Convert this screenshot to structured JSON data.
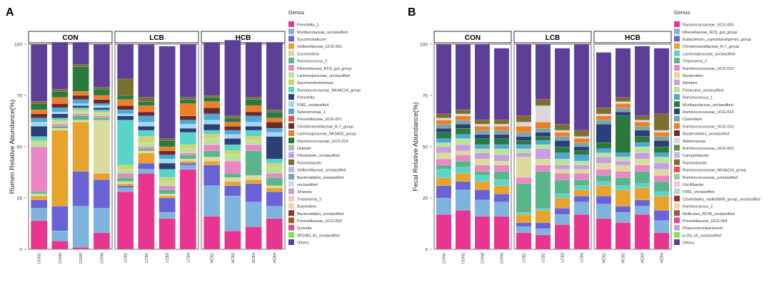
{
  "chart_data": [
    {
      "type": "bar",
      "panel_letter": "A",
      "ylabel": "Rumen Relative Abundance(%)",
      "ylim": [
        0,
        100
      ],
      "yticks": [
        "0",
        "25",
        "50",
        "75",
        "100"
      ],
      "legend_title": "Genus",
      "groups": [
        {
          "name": "CON",
          "samples": [
            "CON1",
            "CON2",
            "CON3",
            "CON4"
          ]
        },
        {
          "name": "LCB",
          "samples": [
            "LCB1",
            "LCB2",
            "LCB3",
            "LCB4"
          ]
        },
        {
          "name": "HCB",
          "samples": [
            "HCB1",
            "HCB2",
            "HCB3",
            "HCB4"
          ]
        }
      ],
      "series": [
        {
          "name": "Prevotella_1",
          "color": "#e8358f",
          "values": [
            14,
            4,
            1,
            8,
            28,
            37,
            15,
            39,
            16,
            9,
            11,
            15
          ]
        },
        {
          "name": "Muribaculaceae_unclassified",
          "color": "#7eb3de",
          "values": [
            6,
            5,
            20,
            12,
            2,
            2,
            3,
            2,
            15,
            17,
            12,
            6
          ]
        },
        {
          "name": "Succiniclasticum",
          "color": "#6a63d6",
          "values": [
            4,
            12,
            17,
            14,
            1,
            3,
            7,
            1,
            10,
            5,
            9,
            7
          ]
        },
        {
          "name": "Veillonellaceae_UCG-001",
          "color": "#e8a32e",
          "values": [
            2,
            37,
            24,
            3,
            1,
            5,
            1,
            1,
            2,
            2,
            2,
            2
          ]
        },
        {
          "name": "Succinivibrio",
          "color": "#dadb9c",
          "values": [
            1,
            1,
            1,
            26,
            1,
            1,
            1,
            1,
            2,
            2,
            2,
            1
          ]
        },
        {
          "name": "Ruminococcus_2",
          "color": "#5bb58a",
          "values": [
            1,
            1,
            2,
            1,
            2,
            1,
            2,
            2,
            3,
            2,
            12,
            4
          ]
        },
        {
          "name": "Rikenellaceae_RC9_gut_group",
          "color": "#ea86c4",
          "values": [
            22,
            1,
            1,
            1,
            2,
            1,
            2,
            1,
            3,
            6,
            3,
            2
          ]
        },
        {
          "name": "Lachnospiraceae_unclassified",
          "color": "#b9e29a",
          "values": [
            2,
            1,
            1,
            1,
            2,
            2,
            2,
            2,
            3,
            3,
            2,
            3
          ]
        },
        {
          "name": "Saccharofermentans",
          "color": "#cdd66a",
          "values": [
            1,
            1,
            1,
            1,
            2,
            3,
            2,
            2,
            2,
            2,
            2,
            2
          ]
        },
        {
          "name": "Ruminococcaceae_NK4A214_group",
          "color": "#5ad3c8",
          "values": [
            2,
            1,
            1,
            1,
            22,
            3,
            4,
            6,
            2,
            3,
            3,
            2
          ]
        },
        {
          "name": "Prevotella",
          "color": "#2b3f78",
          "values": [
            5,
            2,
            1,
            1,
            2,
            2,
            3,
            2,
            3,
            3,
            2,
            11
          ]
        },
        {
          "name": "F082_unclassified",
          "color": "#a3d8ef",
          "values": [
            2,
            1,
            1,
            1,
            1,
            2,
            2,
            2,
            2,
            2,
            2,
            2
          ]
        },
        {
          "name": "Selenomonas_1",
          "color": "#4aa9d9",
          "values": [
            2,
            2,
            2,
            1,
            2,
            3,
            2,
            2,
            3,
            2,
            3,
            2
          ]
        },
        {
          "name": "Christensenellaceae_R-7_group",
          "color": "#6b2b2b",
          "values": [
            2,
            2,
            2,
            2,
            2,
            2,
            2,
            2,
            3,
            2,
            2,
            3
          ]
        },
        {
          "name": "Lachnospiraceae_NK3A20_group",
          "color": "#ee7e28",
          "values": [
            2,
            3,
            2,
            2,
            3,
            3,
            2,
            6,
            3,
            2,
            3,
            2
          ]
        },
        {
          "name": "Ruminococcaceae_UCG-014",
          "color": "#2a7a3f",
          "values": [
            3,
            3,
            12,
            3,
            2,
            2,
            3,
            2,
            2,
            2,
            3,
            3
          ]
        },
        {
          "name": "Ruminobacter",
          "color": "#7a6f2f",
          "values": [
            1,
            1,
            1,
            1,
            8,
            2,
            1,
            1,
            1,
            1,
            1,
            1
          ]
        },
        {
          "name": "Others",
          "color": "#5e3f98",
          "values": [
            28,
            23,
            11,
            21,
            17,
            26,
            45,
            26,
            26,
            37,
            27,
            33
          ]
        }
      ],
      "legend_entries": [
        "Prevotella_1",
        "Muribaculaceae_unclassified",
        "Succiniclasticum",
        "Veillonellaceae_UCG-001",
        "Succinivibrio",
        "Ruminococcus_2",
        "Rikenellaceae_RC9_gut_group",
        "Lachnospiraceae_unclassified",
        "Saccharofermentans",
        "Ruminococcaceae_NK4A214_group",
        "Prevotella",
        "F082_unclassified",
        "Selenomonas_1",
        "Prevotellaceae_UCG-001",
        "Christensenellaceae_R-7_group",
        "Lachnospiraceae_NK3A20_group",
        "Ruminococcaceae_UCG-014",
        "Dialister",
        "Fibrobacter_unclassified",
        "Ruminobacter",
        "Veillonellaceae_unclassified",
        "Bacteroidales_unclassified",
        "unclassified",
        "Sharpea",
        "Treponema_2",
        "Butyrivibrio",
        "Bacteroidales_unclassified",
        "Prevotellaceae_UCG-003",
        "Quinella",
        "WCHB1-41_unclassified",
        "Others"
      ],
      "legend_colors": [
        "#e8358f",
        "#7eb3de",
        "#6a63d6",
        "#e8a32e",
        "#dadb9c",
        "#5bb58a",
        "#ea86c4",
        "#b9e29a",
        "#cdd66a",
        "#5ad3c8",
        "#2b3f78",
        "#a3d8ef",
        "#4aa9d9",
        "#e84a4a",
        "#6b2b2b",
        "#ee7e28",
        "#2a7a3f",
        "#9fc7a5",
        "#c79ee0",
        "#7a6f2f",
        "#c4b4e8",
        "#7aa6a8",
        "#d8d8d8",
        "#b8a7cf",
        "#f3c4d2",
        "#f1d4a8",
        "#993030",
        "#9a5a2a",
        "#e04a90",
        "#7ee34a",
        "#5e3f98"
      ]
    },
    {
      "type": "bar",
      "panel_letter": "B",
      "ylabel": "Fecal Relative Abundance(%)",
      "ylim": [
        0,
        100
      ],
      "yticks": [
        "0",
        "25",
        "50",
        "75",
        "100"
      ],
      "legend_title": "Genus",
      "groups": [
        {
          "name": "CON",
          "samples": [
            "CON1",
            "CON2",
            "CON3",
            "CON4"
          ]
        },
        {
          "name": "LCB",
          "samples": [
            "LCB1",
            "LCB2",
            "LCB3",
            "LCB4"
          ]
        },
        {
          "name": "HCB",
          "samples": [
            "HCB1",
            "HCB2",
            "HCB3",
            "HCB4"
          ]
        }
      ],
      "series": [
        {
          "name": "Ruminococcaceae_UCG-005",
          "color": "#e8358f",
          "values": [
            17,
            19,
            16,
            16,
            8,
            7,
            12,
            17,
            15,
            13,
            17,
            8
          ]
        },
        {
          "name": "Rikenellaceae_RC9_gut_group",
          "color": "#7eb3de",
          "values": [
            8,
            10,
            8,
            7,
            3,
            3,
            5,
            6,
            7,
            5,
            4,
            6
          ]
        },
        {
          "name": "Eubacterium_coprostanoligenes_group",
          "color": "#6a63d6",
          "values": [
            6,
            4,
            5,
            4,
            2,
            3,
            3,
            3,
            4,
            3,
            3,
            5
          ]
        },
        {
          "name": "Christensenellaceae_R-7_group",
          "color": "#e8a32e",
          "values": [
            4,
            4,
            4,
            4,
            4,
            6,
            5,
            3,
            5,
            8,
            6,
            7
          ]
        },
        {
          "name": "Lachnospiraceae_unclassified",
          "color": "#5ad3c8",
          "values": [
            4,
            3,
            3,
            3,
            1,
            1,
            2,
            2,
            2,
            2,
            2,
            2
          ]
        },
        {
          "name": "Treponema_2",
          "color": "#5bb58a",
          "values": [
            2,
            3,
            2,
            4,
            14,
            18,
            7,
            3,
            3,
            4,
            6,
            5
          ]
        },
        {
          "name": "Ruminococcaceae_UCG-010",
          "color": "#ea86c4",
          "values": [
            3,
            3,
            3,
            3,
            3,
            3,
            3,
            3,
            3,
            3,
            3,
            3
          ]
        },
        {
          "name": "Bacteroides",
          "color": "#dadb9c",
          "values": [
            3,
            2,
            3,
            2,
            10,
            3,
            2,
            2,
            3,
            3,
            3,
            3
          ]
        },
        {
          "name": "Alistipes",
          "color": "#c79ee0",
          "values": [
            3,
            3,
            3,
            3,
            2,
            5,
            2,
            2,
            3,
            2,
            3,
            3
          ]
        },
        {
          "name": "Firmicutes_unclassified",
          "color": "#b9e29a",
          "values": [
            2,
            3,
            2,
            3,
            2,
            2,
            3,
            2,
            2,
            2,
            3,
            3
          ]
        },
        {
          "name": "Ruminococcus_1",
          "color": "#4aa9d9",
          "values": [
            2,
            2,
            2,
            2,
            2,
            2,
            3,
            3,
            2,
            2,
            2,
            2
          ]
        },
        {
          "name": "Muribaculaceae_unclassified",
          "color": "#2a7a3f",
          "values": [
            3,
            3,
            3,
            3,
            2,
            2,
            3,
            2,
            3,
            18,
            3,
            3
          ]
        },
        {
          "name": "Ruminococcaceae_UCG-014",
          "color": "#2b3f78",
          "values": [
            2,
            2,
            2,
            2,
            2,
            2,
            3,
            2,
            9,
            2,
            3,
            3
          ]
        },
        {
          "name": "Clostridium",
          "color": "#7aa6a8",
          "values": [
            2,
            2,
            2,
            2,
            2,
            2,
            2,
            2,
            2,
            2,
            2,
            2
          ]
        },
        {
          "name": "Ruminococcaceae_UCG-013",
          "color": "#ee7e28",
          "values": [
            2,
            2,
            2,
            2,
            3,
            3,
            2,
            2,
            2,
            2,
            2,
            2
          ]
        },
        {
          "name": "Akkermansia",
          "color": "#d8d8d8",
          "values": [
            1,
            1,
            1,
            1,
            2,
            8,
            1,
            1,
            1,
            1,
            1,
            1
          ]
        },
        {
          "name": "Ruminobacter",
          "color": "#7a6f2f",
          "values": [
            2,
            2,
            2,
            2,
            3,
            3,
            3,
            3,
            3,
            2,
            2,
            8
          ]
        },
        {
          "name": "Others",
          "color": "#5e3f98",
          "values": [
            34,
            32,
            37,
            35,
            35,
            27,
            37,
            42,
            27,
            24,
            34,
            32
          ]
        }
      ],
      "legend_entries": [
        "Ruminococcaceae_UCG-005",
        "Rikenellaceae_RC9_gut_group",
        "Eubacterium_coprostanoligenes_group",
        "Christensenellaceae_R-7_group",
        "Lachnospiraceae_unclassified",
        "Treponema_2",
        "Ruminococcaceae_UCG-010",
        "Bacteroides",
        "Alistipes",
        "Firmicutes_unclassified",
        "Ruminococcus_1",
        "Muribaculaceae_unclassified",
        "Ruminococcaceae_UCG-014",
        "Clostridium",
        "Ruminococcaceae_UCG-013",
        "Bacteroidales_unclassified",
        "Akkermansia",
        "Ruminococcaceae_UCG-002",
        "Campylobacter",
        "Ruminobacter",
        "Ruminococcaceae_NK4A214_group",
        "Ruminococcaceae_unclassified",
        "Oscillibacter",
        "F082_unclassified",
        "Clostridiales_vadinBB60_group_unclassified",
        "Ruminococcus_2",
        "Mollicutes_RF39_unclassified",
        "Prevotellaceae_UCG-004",
        "Phascolarctobacterium",
        "p-251-o5_unclassified",
        "Others"
      ],
      "legend_colors": [
        "#e8358f",
        "#7eb3de",
        "#6a63d6",
        "#e8a32e",
        "#5ad3c8",
        "#5bb58a",
        "#ea86c4",
        "#dadb9c",
        "#c79ee0",
        "#b9e29a",
        "#4aa9d9",
        "#2a7a3f",
        "#2b3f78",
        "#7aa6a8",
        "#ee7e28",
        "#6b2b2b",
        "#d8d8d8",
        "#5b8f3f",
        "#c4b4e8",
        "#7a6f2f",
        "#e84a4a",
        "#9fc7a5",
        "#f3c4d2",
        "#a3d8ef",
        "#993030",
        "#f1d4a8",
        "#9a5a2a",
        "#e04a90",
        "#b8a7cf",
        "#7ee34a",
        "#5e3f98"
      ]
    }
  ]
}
